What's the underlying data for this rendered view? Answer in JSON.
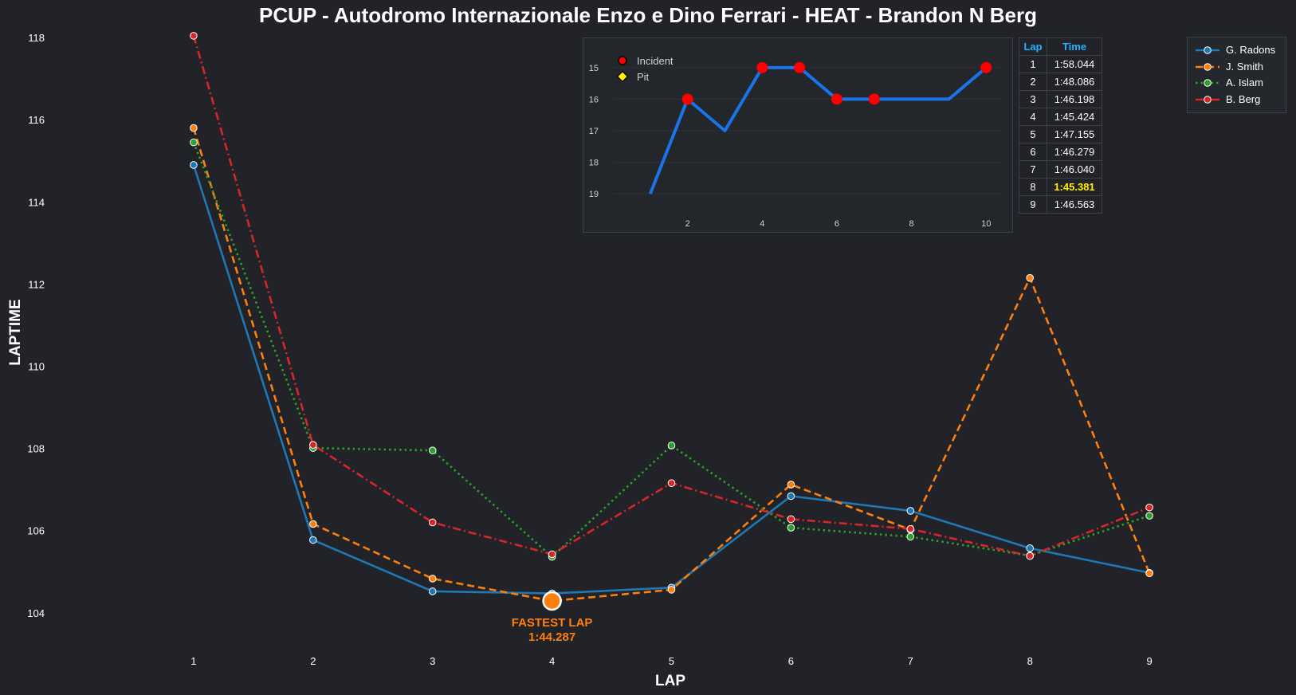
{
  "title": "PCUP - Autodromo Internazionale Enzo e Dino Ferrari - HEAT - Brandon N Berg",
  "colors": {
    "background": "#212328",
    "fastest": "#ff7f0e",
    "table_header": "#1fb4ff",
    "best_time": "#ffee00",
    "inset_line": "#1a73e8",
    "incident": "#ff0000",
    "pit": "#ffee00"
  },
  "chart_data": [
    {
      "type": "line",
      "title": "PCUP - Autodromo Internazionale Enzo e Dino Ferrari - HEAT - Brandon N Berg",
      "xlabel": "LAP",
      "ylabel": "LAPTIME",
      "x": [
        1,
        2,
        3,
        4,
        5,
        6,
        7,
        8,
        9
      ],
      "xlim": [
        0.3,
        9.7
      ],
      "ylim": [
        103.2,
        118.1
      ],
      "yticks": [
        104,
        106,
        108,
        110,
        112,
        114,
        116,
        118
      ],
      "grid": false,
      "legend_position": "top-right",
      "series": [
        {
          "name": "G. Radons",
          "color": "#1f77b4",
          "style": "solid",
          "values": [
            114.9,
            105.77,
            104.52,
            104.47,
            104.61,
            106.84,
            106.48,
            105.57,
            104.97
          ]
        },
        {
          "name": "J. Smith",
          "color": "#ff7f0e",
          "style": "dashed",
          "values": [
            115.8,
            106.16,
            104.83,
            104.287,
            104.56,
            107.12,
            106.02,
            112.15,
            104.96
          ]
        },
        {
          "name": "A. Islam",
          "color": "#2ca02c",
          "style": "dotted",
          "values": [
            115.45,
            108.01,
            107.95,
            105.36,
            108.07,
            106.07,
            105.85,
            105.39,
            106.36
          ]
        },
        {
          "name": "B. Berg",
          "color": "#d62728",
          "style": "dashdot",
          "values": [
            118.044,
            108.086,
            106.198,
            105.424,
            107.155,
            106.279,
            106.04,
            105.381,
            106.563
          ]
        }
      ],
      "annotation": {
        "label": "FASTEST LAP",
        "time": "1:44.287",
        "x": 4,
        "y": 104.287,
        "series": "J. Smith"
      }
    },
    {
      "type": "line",
      "x": [
        1,
        2,
        3,
        4,
        5,
        6,
        7,
        8,
        9,
        10
      ],
      "values": [
        19,
        16,
        17,
        15,
        15,
        16,
        16,
        16,
        16,
        15
      ],
      "xlim": [
        0.0,
        10.4
      ],
      "xticks": [
        2,
        4,
        6,
        8,
        10
      ],
      "ylim": [
        19.4,
        14.6
      ],
      "yticks": [
        15,
        16,
        17,
        18,
        19
      ],
      "y_inverted": true,
      "incident_laps": [
        2,
        4,
        5,
        6,
        7,
        10
      ],
      "pit_laps": [],
      "legend": [
        "Incident",
        "Pit"
      ],
      "legend_position": "top-left"
    }
  ],
  "lap_table": {
    "headers": [
      "Lap",
      "Time"
    ],
    "rows": [
      {
        "lap": "1",
        "time": "1:58.044"
      },
      {
        "lap": "2",
        "time": "1:48.086"
      },
      {
        "lap": "3",
        "time": "1:46.198"
      },
      {
        "lap": "4",
        "time": "1:45.424"
      },
      {
        "lap": "5",
        "time": "1:47.155"
      },
      {
        "lap": "6",
        "time": "1:46.279"
      },
      {
        "lap": "7",
        "time": "1:46.040"
      },
      {
        "lap": "8",
        "time": "1:45.381"
      },
      {
        "lap": "9",
        "time": "1:46.563"
      }
    ],
    "best_lap": "8"
  }
}
